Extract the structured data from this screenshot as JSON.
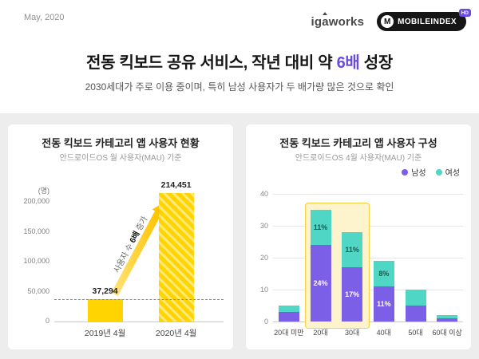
{
  "header": {
    "date": "May, 2020",
    "title_prefix": "전동 킥보드 공유 서비스, 작년 대비 약 ",
    "title_highlight": "6배",
    "title_suffix": " 성장",
    "subtitle": "2030세대가 주로 이용 중이며, 특히 남성 사용자가 두 배가량 많은 것으로 확인",
    "logos": {
      "igaworks": "igaworks",
      "mobileindex": "MOBILEINDEX",
      "mobileindex_mark": "M",
      "mobileindex_badge": "HD"
    }
  },
  "colors": {
    "accent_purple": "#6b4ae2",
    "bar_yellow": "#FFD400",
    "bar_yellow_stripe": "#ffe97d",
    "male_purple": "#7b5fe6",
    "female_teal": "#4fd6c4",
    "highlight_bg": "#fdf3cd",
    "highlight_border": "#f6cf3f"
  },
  "chart_data": [
    {
      "type": "bar",
      "title": "전동 킥보드 카테고리 앱 사용자 현황",
      "subtitle": "안드로이드OS 월 사용자(MAU) 기준",
      "unit_label": "(명)",
      "categories": [
        "2019년 4월",
        "2020년 4월"
      ],
      "values": [
        37294,
        214451
      ],
      "value_labels": [
        "37,294",
        "214,451"
      ],
      "ylim": [
        0,
        200000
      ],
      "yticks": [
        0,
        50000,
        100000,
        150000,
        200000
      ],
      "ytick_labels": [
        "0",
        "50,000",
        "100,000",
        "150,000",
        "200,000"
      ],
      "baseline_dash_at": 37294,
      "annotation": {
        "pre": "사용자 수 ",
        "highlight": "6배",
        "post": " 증가"
      }
    },
    {
      "type": "stacked-bar",
      "title": "전동 킥보드 카테고리 앱 사용자 구성",
      "subtitle": "안드로이드OS 4월 사용자(MAU) 기준",
      "categories": [
        "20대 미만",
        "20대",
        "30대",
        "40대",
        "50대",
        "60대 이상"
      ],
      "series": [
        {
          "name": "남성",
          "color": "#7b5fe6",
          "values": [
            3,
            24,
            17,
            11,
            5,
            1
          ],
          "labels": [
            "",
            "24%",
            "17%",
            "11%",
            "",
            ""
          ]
        },
        {
          "name": "여성",
          "color": "#4fd6c4",
          "values": [
            2,
            11,
            11,
            8,
            5,
            1
          ],
          "labels": [
            "",
            "11%",
            "11%",
            "8%",
            "",
            ""
          ]
        }
      ],
      "ylim": [
        0,
        40
      ],
      "yticks": [
        0,
        10,
        20,
        30,
        40
      ],
      "highlight_categories": [
        "20대",
        "30대"
      ],
      "legend": [
        "남성",
        "여성"
      ],
      "legend_position": "top-right"
    }
  ]
}
